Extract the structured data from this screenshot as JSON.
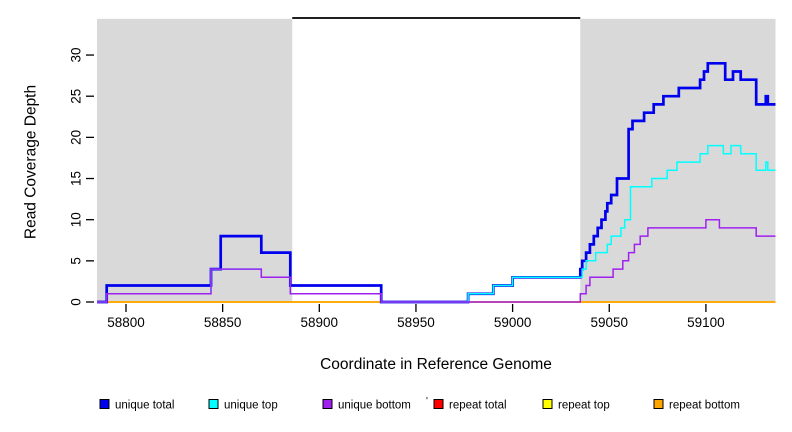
{
  "stray_mark": "'",
  "chart_data": {
    "type": "line",
    "subtype": "step",
    "title": "",
    "xlabel": "Coordinate in Reference Genome",
    "ylabel": "Read Coverage Depth",
    "xlim": [
      58785,
      59136
    ],
    "ylim": [
      0,
      34.5
    ],
    "xticks": [
      58800,
      58850,
      58900,
      58950,
      59000,
      59050,
      59100
    ],
    "yticks": [
      0,
      5,
      10,
      15,
      20,
      25,
      30
    ],
    "grid": false,
    "background_shading": {
      "color": "#D9D9D9",
      "regions": [
        [
          58785,
          58886
        ],
        [
          59035,
          59136
        ]
      ]
    },
    "top_bar": {
      "color": "#000000",
      "region": [
        58886,
        59035
      ]
    },
    "series": [
      {
        "name": "repeat total",
        "color": "#FF0000",
        "width": 1.4,
        "points": [
          [
            58785,
            0
          ]
        ]
      },
      {
        "name": "repeat top",
        "color": "#FFFF00",
        "width": 1.4,
        "points": [
          [
            58785,
            0
          ]
        ]
      },
      {
        "name": "repeat bottom",
        "color": "#FFA500",
        "width": 1.5,
        "points": [
          [
            58785,
            0
          ]
        ]
      },
      {
        "name": "unique total",
        "color": "#0000EE",
        "width": 2.7,
        "points": [
          [
            58785,
            0
          ],
          [
            58790,
            2
          ],
          [
            58844,
            4
          ],
          [
            58849,
            8
          ],
          [
            58870,
            6
          ],
          [
            58885,
            2
          ],
          [
            58932,
            0
          ],
          [
            58977,
            1
          ],
          [
            58990,
            2
          ],
          [
            59000,
            3
          ],
          [
            59035,
            4
          ],
          [
            59036,
            5
          ],
          [
            59038,
            6
          ],
          [
            59040,
            7
          ],
          [
            59042,
            8
          ],
          [
            59044,
            9
          ],
          [
            59046,
            10
          ],
          [
            59048,
            11
          ],
          [
            59049,
            12
          ],
          [
            59051,
            13
          ],
          [
            59054,
            15
          ],
          [
            59060,
            21
          ],
          [
            59062,
            22
          ],
          [
            59068,
            23
          ],
          [
            59073,
            24
          ],
          [
            59078,
            25
          ],
          [
            59086,
            26
          ],
          [
            59097,
            27
          ],
          [
            59099,
            28
          ],
          [
            59101,
            29
          ],
          [
            59110,
            27
          ],
          [
            59114,
            28
          ],
          [
            59118,
            27
          ],
          [
            59126,
            24
          ],
          [
            59131,
            25
          ],
          [
            59132,
            24
          ]
        ]
      },
      {
        "name": "unique top",
        "color": "#00FFFF",
        "width": 1.5,
        "points": [
          [
            58785,
            0
          ],
          [
            58790,
            1
          ],
          [
            58844,
            4
          ],
          [
            58870,
            3
          ],
          [
            58885,
            1
          ],
          [
            58932,
            0
          ],
          [
            58977,
            1
          ],
          [
            58990,
            2
          ],
          [
            59000,
            3
          ],
          [
            59036,
            4
          ],
          [
            59038,
            5
          ],
          [
            59043,
            6
          ],
          [
            59049,
            7
          ],
          [
            59051,
            8
          ],
          [
            59056,
            9
          ],
          [
            59058,
            10
          ],
          [
            59061,
            14
          ],
          [
            59072,
            15
          ],
          [
            59080,
            16
          ],
          [
            59085,
            17
          ],
          [
            59097,
            18
          ],
          [
            59101,
            19
          ],
          [
            59109,
            18
          ],
          [
            59113,
            19
          ],
          [
            59118,
            18
          ],
          [
            59126,
            16
          ],
          [
            59131,
            17
          ],
          [
            59132,
            16
          ]
        ]
      },
      {
        "name": "unique bottom",
        "color": "#A020F0",
        "width": 1.5,
        "points": [
          [
            58785,
            0
          ],
          [
            58790,
            1
          ],
          [
            58844,
            4
          ],
          [
            58870,
            3
          ],
          [
            58885,
            1
          ],
          [
            58932,
            0
          ],
          [
            59035,
            1
          ],
          [
            59038,
            2
          ],
          [
            59040,
            3
          ],
          [
            59052,
            4
          ],
          [
            59057,
            5
          ],
          [
            59060,
            6
          ],
          [
            59063,
            7
          ],
          [
            59066,
            8
          ],
          [
            59070,
            9
          ],
          [
            59100,
            10
          ],
          [
            59107,
            9
          ],
          [
            59126,
            8
          ]
        ]
      }
    ],
    "legend": {
      "position": "bottom",
      "items": [
        {
          "label": "unique total",
          "color": "#0000EE"
        },
        {
          "label": "unique top",
          "color": "#00FFFF"
        },
        {
          "label": "unique bottom",
          "color": "#A020F0"
        },
        {
          "label": "repeat total",
          "color": "#FF0000"
        },
        {
          "label": "repeat top",
          "color": "#FFFF00"
        },
        {
          "label": "repeat bottom",
          "color": "#FFA500"
        }
      ]
    }
  }
}
